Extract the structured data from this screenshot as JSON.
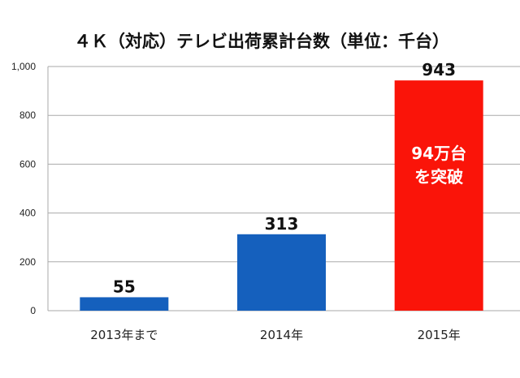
{
  "chart_data": {
    "type": "bar",
    "title": "４Ｋ（対応）テレビ出荷累計台数（単位：千台）",
    "xlabel": "",
    "ylabel": "",
    "categories": [
      "2013年まで",
      "2014年",
      "2015年"
    ],
    "values": [
      55,
      313,
      943
    ],
    "data_labels": [
      "55",
      "313",
      "943"
    ],
    "colors": [
      "#1560bd",
      "#1560bd",
      "#fa1409"
    ],
    "ylim": [
      0,
      1000
    ],
    "yticks": [
      0,
      200,
      400,
      600,
      800,
      1000
    ],
    "ytick_labels": [
      "0",
      "200",
      "400",
      "600",
      "800",
      "1,000"
    ],
    "grid": true,
    "annotation": {
      "category": "2015年",
      "lines": [
        "94万台",
        "を突破"
      ],
      "color": "#ffffff"
    }
  }
}
